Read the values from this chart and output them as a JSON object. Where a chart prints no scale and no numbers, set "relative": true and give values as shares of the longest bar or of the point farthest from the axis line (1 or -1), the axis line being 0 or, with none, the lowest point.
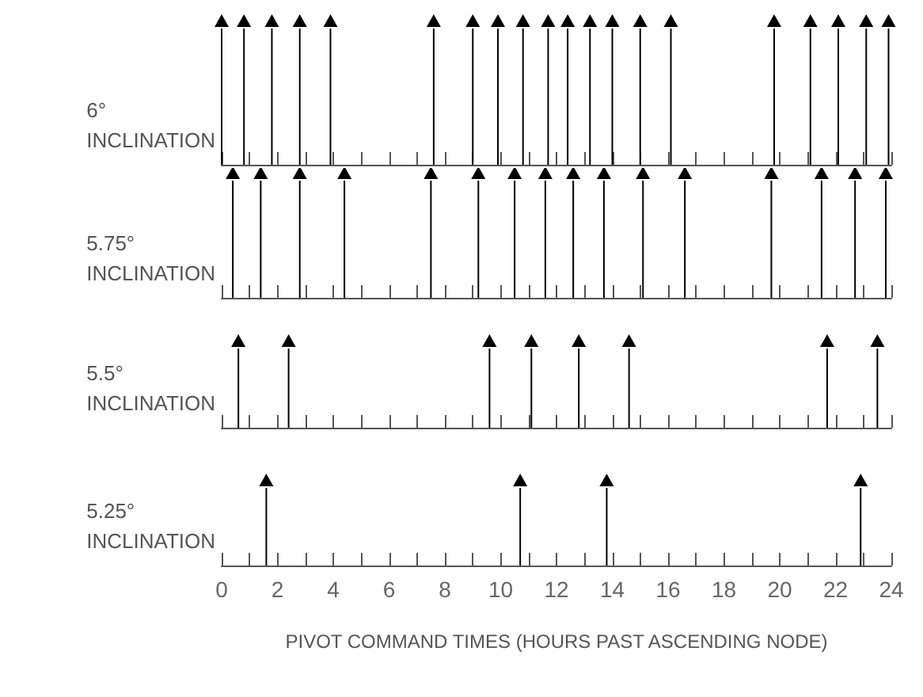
{
  "chart_data": [
    {
      "type": "bar",
      "ylabel": "6° INCLINATION",
      "relative": true,
      "marker": "triangle",
      "color": "#000000",
      "tick_labels": false,
      "xlim": [
        0,
        24
      ],
      "xticks": [
        0,
        {
          "value": 1,
          "label": null
        },
        2,
        {
          "value": 3,
          "label": null
        },
        4,
        {
          "value": 5,
          "label": null
        },
        6,
        {
          "value": 7,
          "label": null
        },
        8,
        {
          "value": 9,
          "label": null
        },
        10,
        {
          "value": 11,
          "label": null
        },
        12,
        {
          "value": 13,
          "label": null
        },
        14,
        {
          "value": 15,
          "label": null
        },
        16,
        {
          "value": 17,
          "label": null
        },
        18,
        {
          "value": 19,
          "label": null
        },
        20,
        {
          "value": 21,
          "label": null
        },
        22,
        {
          "value": 23,
          "label": null
        },
        24
      ],
      "x": [
        0,
        0.8,
        1.8,
        2.8,
        3.9,
        7.6,
        9.0,
        9.9,
        10.8,
        11.7,
        12.4,
        13.2,
        14.0,
        15.0,
        16.1,
        19.8,
        21.1,
        22.1,
        23.1,
        23.9
      ],
      "values": [
        1,
        1,
        1,
        1,
        1,
        1,
        1,
        1,
        1,
        1,
        1,
        1,
        1,
        1,
        1,
        1,
        1,
        1,
        1,
        1
      ]
    },
    {
      "type": "bar",
      "ylabel": "5.75° INCLINATION",
      "relative": true,
      "marker": "triangle",
      "color": "#000000",
      "tick_labels": false,
      "xlim": [
        0,
        24
      ],
      "xticks": [
        0,
        {
          "value": 1,
          "label": null
        },
        2,
        {
          "value": 3,
          "label": null
        },
        4,
        {
          "value": 5,
          "label": null
        },
        6,
        {
          "value": 7,
          "label": null
        },
        8,
        {
          "value": 9,
          "label": null
        },
        10,
        {
          "value": 11,
          "label": null
        },
        12,
        {
          "value": 13,
          "label": null
        },
        14,
        {
          "value": 15,
          "label": null
        },
        16,
        {
          "value": 17,
          "label": null
        },
        18,
        {
          "value": 19,
          "label": null
        },
        20,
        {
          "value": 21,
          "label": null
        },
        22,
        {
          "value": 23,
          "label": null
        },
        24
      ],
      "x": [
        0.4,
        1.4,
        2.8,
        4.4,
        7.5,
        9.2,
        10.5,
        11.6,
        12.6,
        13.7,
        15.1,
        16.6,
        19.7,
        21.5,
        22.7,
        23.8
      ],
      "values": [
        1,
        1,
        1,
        1,
        1,
        1,
        1,
        1,
        1,
        1,
        1,
        1,
        1,
        1,
        1,
        1
      ]
    },
    {
      "type": "bar",
      "ylabel": "5.5° INCLINATION",
      "relative": true,
      "marker": "triangle",
      "color": "#000000",
      "tick_labels": false,
      "xlim": [
        0,
        24
      ],
      "xticks": [
        0,
        {
          "value": 1,
          "label": null
        },
        2,
        {
          "value": 3,
          "label": null
        },
        4,
        {
          "value": 5,
          "label": null
        },
        6,
        {
          "value": 7,
          "label": null
        },
        8,
        {
          "value": 9,
          "label": null
        },
        10,
        {
          "value": 11,
          "label": null
        },
        12,
        {
          "value": 13,
          "label": null
        },
        14,
        {
          "value": 15,
          "label": null
        },
        16,
        {
          "value": 17,
          "label": null
        },
        18,
        {
          "value": 19,
          "label": null
        },
        20,
        {
          "value": 21,
          "label": null
        },
        22,
        {
          "value": 23,
          "label": null
        },
        24
      ],
      "x": [
        0.6,
        2.4,
        9.6,
        11.1,
        12.8,
        14.6,
        21.7,
        23.5
      ],
      "values": [
        1,
        1,
        1,
        1,
        1,
        1,
        1,
        1
      ]
    },
    {
      "type": "bar",
      "ylabel": "5.25° INCLINATION",
      "xlabel": "PIVOT COMMAND TIMES (HOURS PAST ASCENDING NODE)",
      "relative": true,
      "marker": "triangle",
      "color": "#000000",
      "tick_labels": "x",
      "xlim": [
        0,
        24
      ],
      "xticks": [
        0,
        {
          "value": 1,
          "label": null
        },
        2,
        {
          "value": 3,
          "label": null
        },
        4,
        {
          "value": 5,
          "label": null
        },
        6,
        {
          "value": 7,
          "label": null
        },
        8,
        {
          "value": 9,
          "label": null
        },
        10,
        {
          "value": 11,
          "label": null
        },
        12,
        {
          "value": 13,
          "label": null
        },
        14,
        {
          "value": 15,
          "label": null
        },
        16,
        {
          "value": 17,
          "label": null
        },
        18,
        {
          "value": 19,
          "label": null
        },
        20,
        {
          "value": 21,
          "label": null
        },
        22,
        {
          "value": 23,
          "label": null
        },
        24
      ],
      "x": [
        1.6,
        10.7,
        13.8,
        22.9
      ],
      "values": [
        1,
        1,
        1,
        1
      ]
    }
  ]
}
